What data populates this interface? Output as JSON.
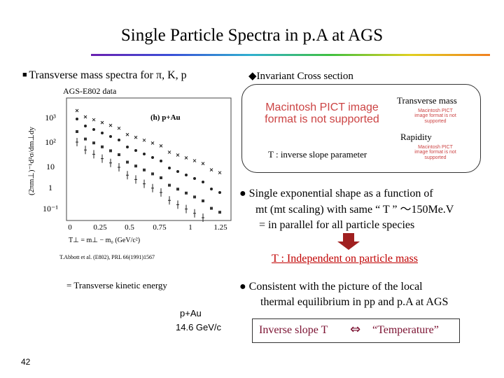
{
  "header": {
    "title": "Single Particle Spectra in p.A at AGS"
  },
  "left": {
    "heading": "Transverse mass spectra for π, K, p",
    "data_source": "AGS-E802 data",
    "plot": {
      "y_label": "(2πm⊥)⁻¹d²σ/dm⊥dy",
      "y_tick_labels": [
        "10³",
        "10²",
        "10",
        "1",
        "10⁻¹"
      ],
      "x_tick_labels": [
        "0",
        "0.25",
        "0.5",
        "0.75",
        "1",
        "1.25"
      ],
      "x_label": "T⊥ = m⊥ − m₀ (GeV/c²)",
      "panel_label": "(h) p+Au"
    },
    "reference": "T.Abbott et al. (E802), PRL 66(1991)1567",
    "note": "= Transverse kinetic energy",
    "system": "p+Au",
    "energy": "14.6 GeV/c",
    "page_number": "42"
  },
  "right": {
    "heading": "Invariant Cross section",
    "pict_placeholder": "Macintosh PICT image format is not supported",
    "transverse_mass": "Transverse mass",
    "rapidity": "Rapidity",
    "slope_def": "T : inverse slope parameter",
    "bullet1": [
      "Single exponential shape as a function of",
      "mt  (mt scaling) with same “ T ”  ～150Me.V",
      "= in parallel for all particle species"
    ],
    "conclusion": "T : Independent on particle mass",
    "bullet2": [
      "Consistent  with the picture of the local",
      "thermal equilibrium in  pp and p.A at AGS"
    ],
    "box": {
      "left": "Inverse slope T",
      "symbol": "⇔",
      "right": "“Temperature”"
    }
  }
}
